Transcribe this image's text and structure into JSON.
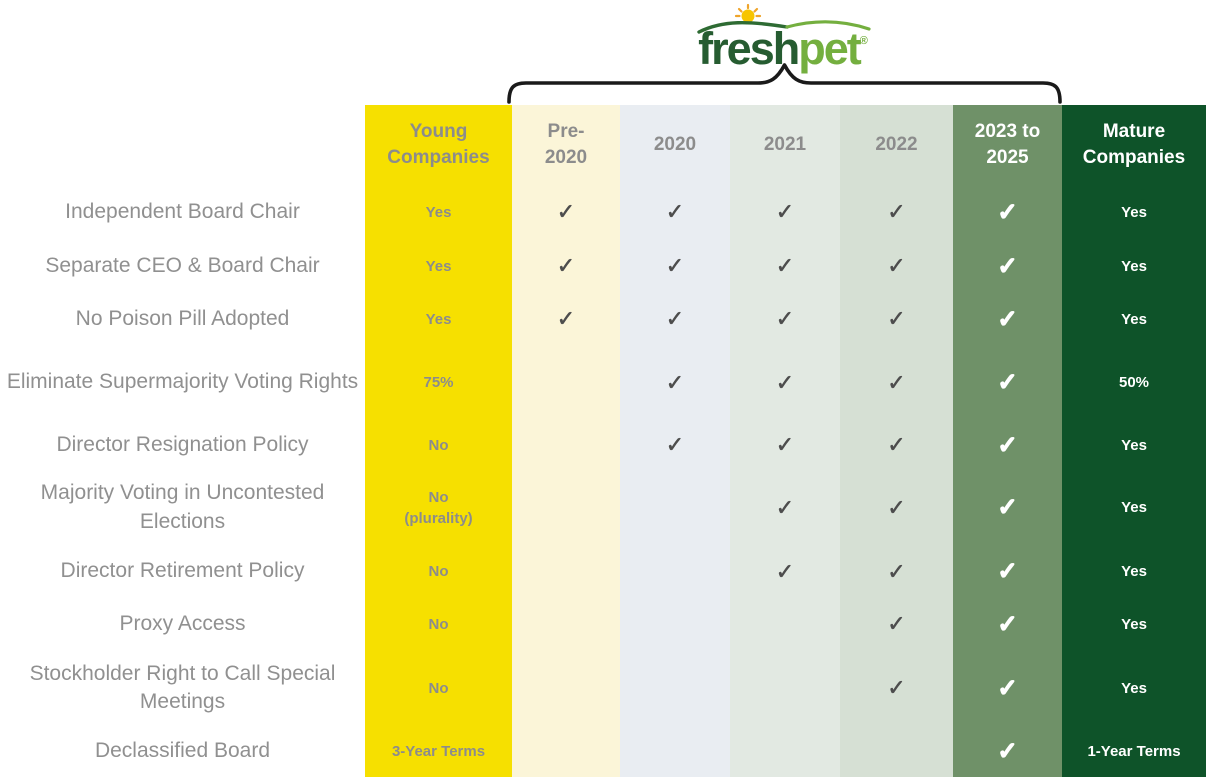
{
  "logo": {
    "brand_fresh": "fresh",
    "brand_pet": "pet",
    "registered": "®"
  },
  "chart_data": {
    "type": "table",
    "title": "Freshpet governance practices timeline vs. young and mature companies",
    "check_glyph": "✓",
    "columns": [
      "",
      "Young\nCompanies",
      "Pre-\n2020",
      "2020",
      "2021",
      "2022",
      "2023 to\n2025",
      "Mature\nCompanies"
    ],
    "year_columns": [
      "Pre-2020",
      "2020",
      "2021",
      "2022",
      "2023 to 2025"
    ],
    "rows": [
      {
        "label": "Independent Board Chair",
        "young": "Yes",
        "checks": [
          true,
          true,
          true,
          true,
          true
        ],
        "mature": "Yes"
      },
      {
        "label": "Separate CEO & Board Chair",
        "young": "Yes",
        "checks": [
          true,
          true,
          true,
          true,
          true
        ],
        "mature": "Yes"
      },
      {
        "label": "No Poison Pill Adopted",
        "young": "Yes",
        "checks": [
          true,
          true,
          true,
          true,
          true
        ],
        "mature": "Yes"
      },
      {
        "label": "Eliminate Supermajority Voting Rights",
        "young": "75%",
        "checks": [
          false,
          true,
          true,
          true,
          true
        ],
        "mature": "50%"
      },
      {
        "label": "Director Resignation Policy",
        "young": "No",
        "checks": [
          false,
          true,
          true,
          true,
          true
        ],
        "mature": "Yes"
      },
      {
        "label": "Majority Voting in Uncontested Elections",
        "young": "No\n(plurality)",
        "checks": [
          false,
          false,
          true,
          true,
          true
        ],
        "mature": "Yes"
      },
      {
        "label": "Director Retirement Policy",
        "young": "No",
        "checks": [
          false,
          false,
          true,
          true,
          true
        ],
        "mature": "Yes"
      },
      {
        "label": "Proxy Access",
        "young": "No",
        "checks": [
          false,
          false,
          false,
          true,
          true
        ],
        "mature": "Yes"
      },
      {
        "label": "Stockholder Right to Call Special Meetings",
        "young": "No",
        "checks": [
          false,
          false,
          false,
          true,
          true
        ],
        "mature": "Yes"
      },
      {
        "label": "Declassified Board",
        "young": "3-Year Terms",
        "checks": [
          false,
          false,
          false,
          false,
          true
        ],
        "mature": "1-Year Terms"
      }
    ]
  },
  "colors": {
    "young_bg": "#F6E000",
    "pre2020_bg": "#FBF5D8",
    "y2020_bg": "#E9EDF2",
    "y2021_bg": "#E2E9E2",
    "y2022_bg": "#D6E0D4",
    "y2023_bg": "#6F9168",
    "mature_bg": "#0E5329",
    "label_text": "#909090",
    "header_text": "#8C8C8C",
    "value_text": "#8C8C8C",
    "check_dark": "#4D4D4D",
    "brace": "#1A1A1A",
    "brand_dark_green": "#265C31",
    "brand_light_green": "#74AF3F",
    "sun_yellow": "#F7C500",
    "sun_rays": "#EFA42B"
  }
}
